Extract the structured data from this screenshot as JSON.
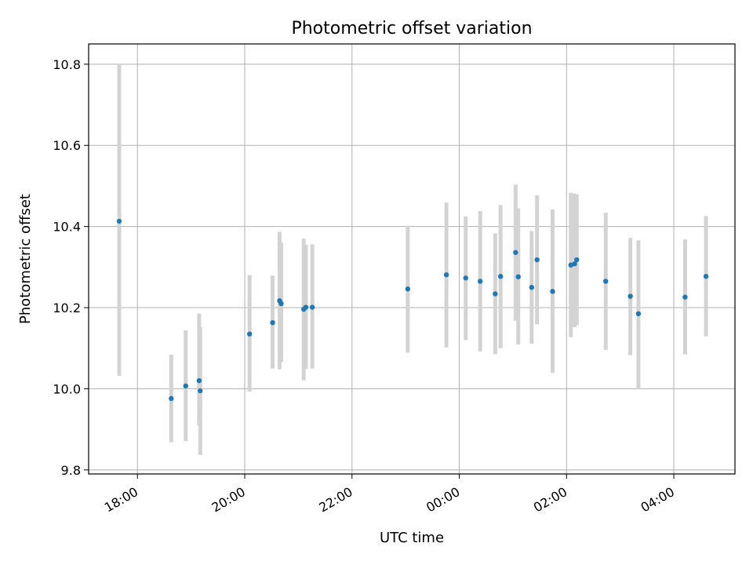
{
  "chart_data": {
    "type": "scatter",
    "title": "Photometric offset variation",
    "xlabel": "UTC time",
    "ylabel": "Photometric offset",
    "x_unit": "hours since 00:00 (negative = previous day)",
    "xlim": [
      -6.91,
      5.14
    ],
    "ylim": [
      9.79,
      10.85
    ],
    "grid": true,
    "x_ticks": [
      {
        "value": -6,
        "label": "18:00"
      },
      {
        "value": -4,
        "label": "20:00"
      },
      {
        "value": -2,
        "label": "22:00"
      },
      {
        "value": 0,
        "label": "00:00"
      },
      {
        "value": 2,
        "label": "02:00"
      },
      {
        "value": 4,
        "label": "04:00"
      }
    ],
    "y_ticks": [
      {
        "value": 9.8,
        "label": "9.8"
      },
      {
        "value": 10.0,
        "label": "10.0"
      },
      {
        "value": 10.2,
        "label": "10.2"
      },
      {
        "value": 10.4,
        "label": "10.4"
      },
      {
        "value": 10.6,
        "label": "10.6"
      },
      {
        "value": 10.8,
        "label": "10.8"
      }
    ],
    "colors": {
      "point": "#1f77b4",
      "errorbar": "#d3d3d3",
      "grid": "#b0b0b0"
    },
    "points": [
      {
        "x": -6.34,
        "y": 10.413,
        "ylow": 10.032,
        "yhigh": 10.8
      },
      {
        "x": -5.37,
        "y": 9.976,
        "ylow": 9.868,
        "yhigh": 10.084
      },
      {
        "x": -5.1,
        "y": 10.007,
        "ylow": 9.871,
        "yhigh": 10.144
      },
      {
        "x": -4.85,
        "y": 10.02,
        "ylow": 9.91,
        "yhigh": 10.185
      },
      {
        "x": -4.83,
        "y": 9.995,
        "ylow": 9.837,
        "yhigh": 10.152
      },
      {
        "x": -3.91,
        "y": 10.135,
        "ylow": 9.993,
        "yhigh": 10.28
      },
      {
        "x": -3.48,
        "y": 10.163,
        "ylow": 10.05,
        "yhigh": 10.279
      },
      {
        "x": -3.35,
        "y": 10.217,
        "ylow": 10.048,
        "yhigh": 10.387
      },
      {
        "x": -3.32,
        "y": 10.21,
        "ylow": 10.066,
        "yhigh": 10.36
      },
      {
        "x": -2.9,
        "y": 10.196,
        "ylow": 10.021,
        "yhigh": 10.37
      },
      {
        "x": -2.86,
        "y": 10.201,
        "ylow": 10.049,
        "yhigh": 10.355
      },
      {
        "x": -2.74,
        "y": 10.201,
        "ylow": 10.05,
        "yhigh": 10.356
      },
      {
        "x": -0.96,
        "y": 10.246,
        "ylow": 10.089,
        "yhigh": 10.402
      },
      {
        "x": -0.24,
        "y": 10.281,
        "ylow": 10.102,
        "yhigh": 10.459
      },
      {
        "x": 0.12,
        "y": 10.273,
        "ylow": 10.12,
        "yhigh": 10.425
      },
      {
        "x": 0.39,
        "y": 10.265,
        "ylow": 10.092,
        "yhigh": 10.438
      },
      {
        "x": 0.67,
        "y": 10.234,
        "ylow": 10.085,
        "yhigh": 10.383
      },
      {
        "x": 0.77,
        "y": 10.277,
        "ylow": 10.1,
        "yhigh": 10.453
      },
      {
        "x": 1.05,
        "y": 10.336,
        "ylow": 10.168,
        "yhigh": 10.503
      },
      {
        "x": 1.1,
        "y": 10.276,
        "ylow": 10.109,
        "yhigh": 10.445
      },
      {
        "x": 1.35,
        "y": 10.25,
        "ylow": 10.111,
        "yhigh": 10.389
      },
      {
        "x": 1.45,
        "y": 10.318,
        "ylow": 10.159,
        "yhigh": 10.477
      },
      {
        "x": 1.74,
        "y": 10.24,
        "ylow": 10.039,
        "yhigh": 10.442
      },
      {
        "x": 2.08,
        "y": 10.305,
        "ylow": 10.127,
        "yhigh": 10.483
      },
      {
        "x": 2.15,
        "y": 10.308,
        "ylow": 10.152,
        "yhigh": 10.481
      },
      {
        "x": 2.19,
        "y": 10.318,
        "ylow": 10.157,
        "yhigh": 10.479
      },
      {
        "x": 2.73,
        "y": 10.265,
        "ylow": 10.096,
        "yhigh": 10.434
      },
      {
        "x": 3.19,
        "y": 10.228,
        "ylow": 10.083,
        "yhigh": 10.372
      },
      {
        "x": 3.34,
        "y": 10.185,
        "ylow": 10.0,
        "yhigh": 10.366
      },
      {
        "x": 4.21,
        "y": 10.226,
        "ylow": 10.085,
        "yhigh": 10.368
      },
      {
        "x": 4.6,
        "y": 10.277,
        "ylow": 10.129,
        "yhigh": 10.426
      }
    ]
  }
}
